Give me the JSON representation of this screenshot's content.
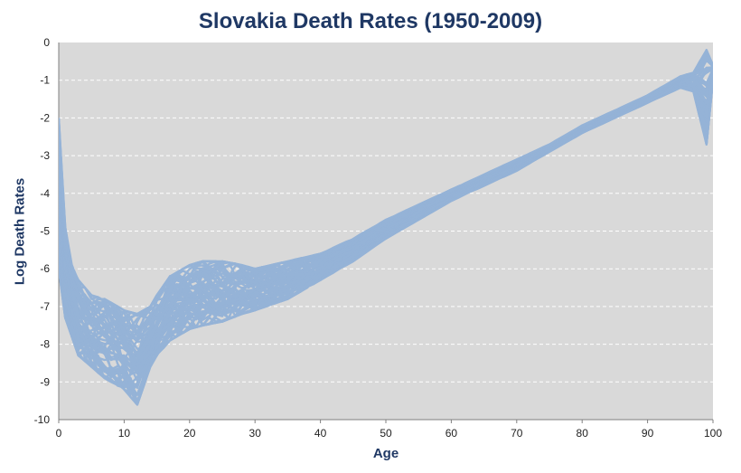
{
  "chart_data": {
    "type": "line",
    "title": "Slovakia Death Rates (1950-2009)",
    "xlabel": "Age",
    "ylabel": "Log Death Rates",
    "xlim": [
      0,
      100
    ],
    "ylim": [
      -10,
      0
    ],
    "x_ticks": [
      "0",
      "10",
      "20",
      "30",
      "40",
      "50",
      "60",
      "70",
      "80",
      "90",
      "100"
    ],
    "y_ticks": [
      "0",
      "-1",
      "-2",
      "-3",
      "-4",
      "-5",
      "-6",
      "-7",
      "-8",
      "-9",
      "-10"
    ],
    "grid": "horizontal dashed",
    "legend": "none",
    "series_color": "#95b3d7",
    "plot_background": "#d9d9d9",
    "text_color": "#1f3864",
    "series_count": 60,
    "envelope": {
      "ages": [
        0,
        1,
        2,
        3,
        5,
        7,
        9,
        10,
        12,
        14,
        15,
        17,
        20,
        22,
        25,
        28,
        30,
        35,
        40,
        45,
        50,
        55,
        60,
        65,
        70,
        75,
        80,
        85,
        90,
        95,
        97,
        99,
        100
      ],
      "upper": [
        -2.0,
        -4.9,
        -5.9,
        -6.3,
        -6.7,
        -6.8,
        -7.0,
        -7.1,
        -7.2,
        -7.0,
        -6.7,
        -6.2,
        -5.9,
        -5.8,
        -5.8,
        -5.9,
        -6.0,
        -5.8,
        -5.6,
        -5.2,
        -4.7,
        -4.3,
        -3.9,
        -3.5,
        -3.1,
        -2.7,
        -2.2,
        -1.8,
        -1.4,
        -0.9,
        -0.8,
        -0.2,
        -0.6
      ],
      "lower": [
        -6.0,
        -7.3,
        -7.8,
        -8.3,
        -8.6,
        -8.9,
        -9.1,
        -9.2,
        -9.6,
        -8.6,
        -8.3,
        -7.9,
        -7.6,
        -7.5,
        -7.4,
        -7.2,
        -7.1,
        -6.8,
        -6.3,
        -5.8,
        -5.2,
        -4.7,
        -4.2,
        -3.8,
        -3.4,
        -2.9,
        -2.4,
        -2.0,
        -1.6,
        -1.2,
        -1.3,
        -2.7,
        -1.0
      ]
    }
  }
}
